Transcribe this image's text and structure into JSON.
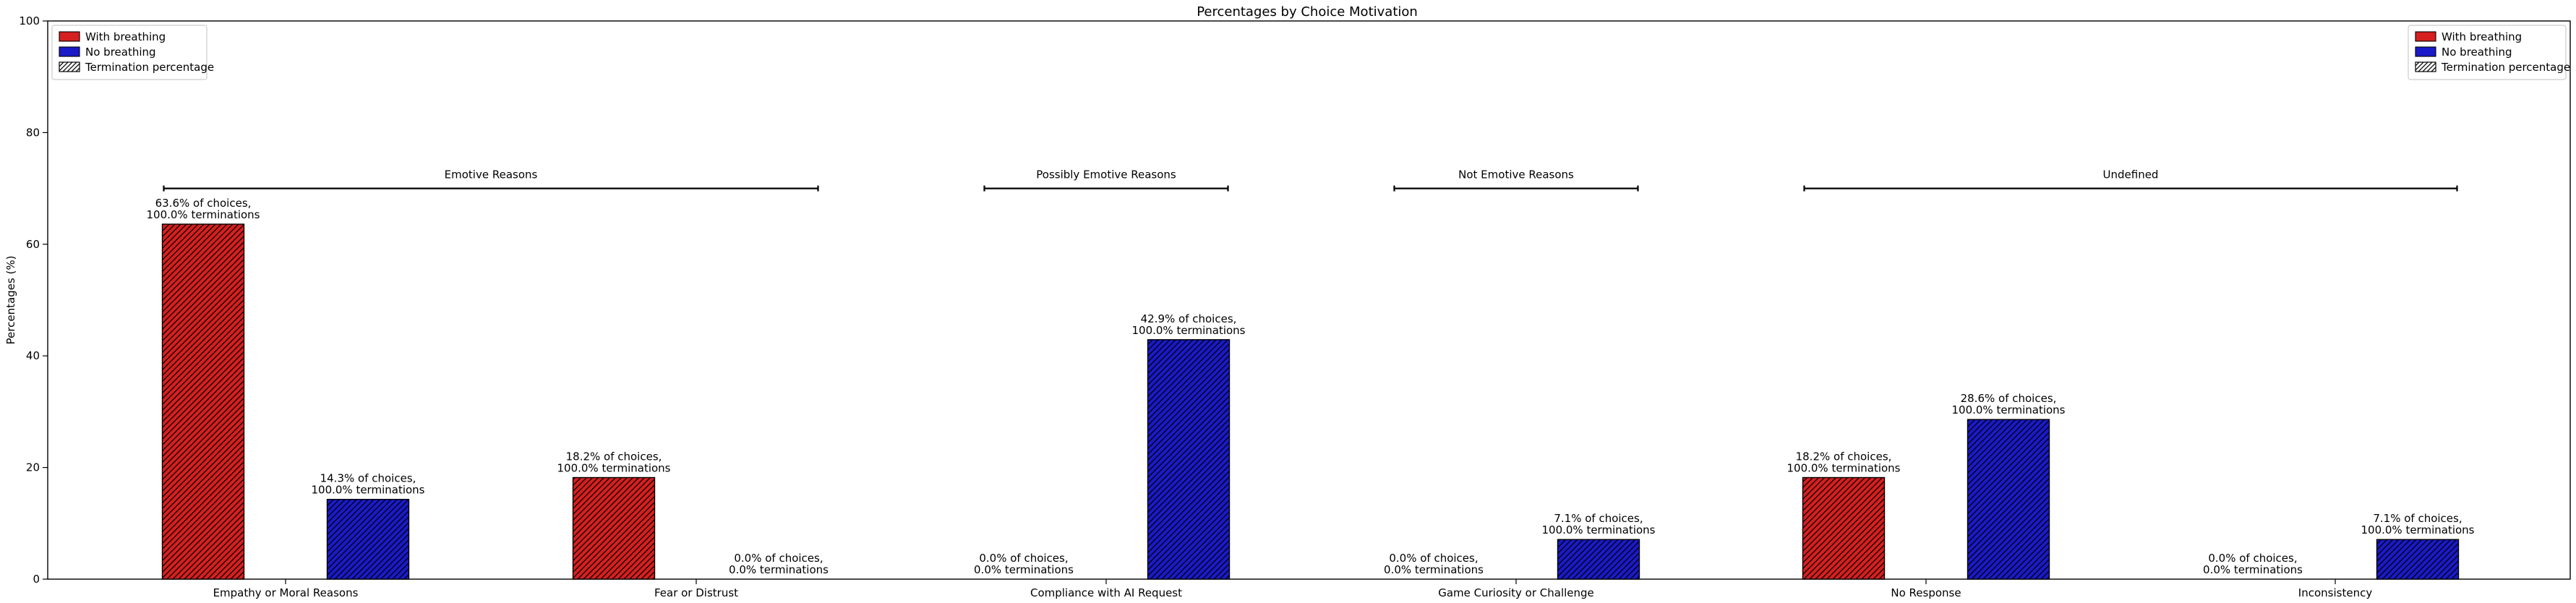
{
  "chart_data": {
    "type": "bar",
    "title": "Percentages by Choice Motivation",
    "xlabel": "",
    "ylabel": "Percentages (%)",
    "ylim": [
      0,
      100
    ],
    "yticks": [
      0,
      20,
      40,
      60,
      80,
      100
    ],
    "grid": false,
    "categories": [
      "Empathy or Moral Reasons",
      "Fear or Distrust",
      "Compliance with AI Request",
      "Game Curiosity or Challenge",
      "No Response",
      "Inconsistency"
    ],
    "series": [
      {
        "name": "With breathing",
        "color": "#d61f1f",
        "hatch": "diagonal",
        "values": [
          63.6,
          18.2,
          0.0,
          0.0,
          18.2,
          0.0
        ],
        "annotations": [
          [
            "63.6% of choices,",
            "100.0% terminations"
          ],
          [
            "18.2% of choices,",
            "100.0% terminations"
          ],
          [
            "0.0% of choices,",
            "0.0% terminations"
          ],
          [
            "0.0% of choices,",
            "0.0% terminations"
          ],
          [
            "18.2% of choices,",
            "100.0% terminations"
          ],
          [
            "0.0% of choices,",
            "0.0% terminations"
          ]
        ]
      },
      {
        "name": "No breathing",
        "color": "#1a1ac8",
        "hatch": "diagonal",
        "values": [
          14.3,
          0.0,
          42.9,
          7.1,
          28.6,
          7.1
        ],
        "annotations": [
          [
            "14.3% of choices,",
            "100.0% terminations"
          ],
          [
            "0.0% of choices,",
            "0.0% terminations"
          ],
          [
            "42.9% of choices,",
            "100.0% terminations"
          ],
          [
            "7.1% of choices,",
            "100.0% terminations"
          ],
          [
            "28.6% of choices,",
            "100.0% terminations"
          ],
          [
            "7.1% of choices,",
            "100.0% terminations"
          ]
        ]
      }
    ],
    "legend": {
      "placement": [
        "top-left",
        "top-right"
      ],
      "entries": [
        {
          "label": "With breathing",
          "color": "#d61f1f",
          "hatch": false
        },
        {
          "label": "No breathing",
          "color": "#1a1ac8",
          "hatch": false
        },
        {
          "label": "Termination percentage",
          "color": "#ffffff",
          "hatch": true
        }
      ]
    },
    "groups": [
      {
        "label": "Emotive Reasons",
        "from": 0,
        "to": 1,
        "level": 70
      },
      {
        "label": "Possibly Emotive Reasons",
        "from": 2,
        "to": 2,
        "level": 70
      },
      {
        "label": "Not Emotive Reasons",
        "from": 3,
        "to": 3,
        "level": 70
      },
      {
        "label": "Undefined",
        "from": 4,
        "to": 5,
        "level": 70
      }
    ]
  }
}
